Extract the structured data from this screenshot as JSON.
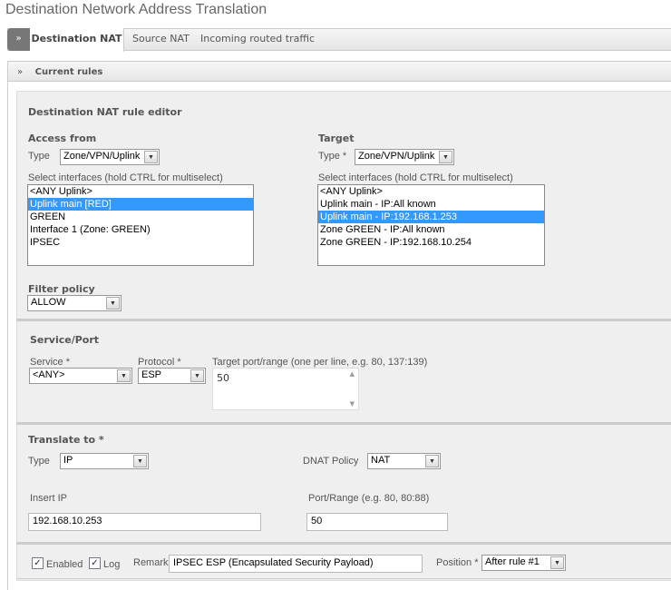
{
  "title": "Destination Network Address Translation",
  "tabs": [
    "Destination NAT",
    "Source NAT",
    "Incoming routed traffic"
  ],
  "current_rules": "Current rules",
  "editor_title": "Destination NAT rule editor",
  "access_from": {
    "heading": "Access from",
    "type_label": "Type",
    "type_value": "Zone/VPN/Uplink",
    "select_label": "Select interfaces (hold CTRL for multiselect)",
    "items": [
      "<ANY Uplink>",
      "Uplink main [RED]",
      "GREEN",
      "Interface 1 (Zone: GREEN)",
      "IPSEC"
    ],
    "selected": "Uplink main [RED]"
  },
  "target": {
    "heading": "Target",
    "type_label": "Type *",
    "type_value": "Zone/VPN/Uplink",
    "select_label": "Select interfaces (hold CTRL for multiselect)",
    "items": [
      "<ANY Uplink>",
      "Uplink main - IP:All known",
      "Uplink main - IP:192.168.1.253",
      "Zone GREEN - IP:All known",
      "Zone GREEN - IP:192.168.10.254"
    ],
    "selected": "Uplink main - IP:192.168.1.253"
  },
  "filter_policy": {
    "label": "Filter policy",
    "value": "ALLOW"
  },
  "service_port": {
    "heading": "Service/Port",
    "service_label": "Service *",
    "service_value": "<ANY>",
    "protocol_label": "Protocol *",
    "protocol_value": "ESP",
    "target_port_label": "Target port/range (one per line, e.g. 80, 137:139)",
    "target_port_value": "50"
  },
  "translate": {
    "heading": "Translate to *",
    "type_label": "Type",
    "type_value": "IP",
    "dnat_label": "DNAT Policy",
    "dnat_value": "NAT",
    "insert_ip_label": "Insert IP",
    "insert_ip_value": "192.168.10.253",
    "port_label": "Port/Range (e.g. 80, 80:88)",
    "port_value": "50"
  },
  "footer": {
    "enabled_label": "Enabled",
    "enabled": true,
    "log_label": "Log",
    "log": true,
    "remark_label": "Remark",
    "remark_value": "IPSEC ESP (Encapsulated Security Payload)",
    "position_label": "Position *",
    "position_value": "After rule #1"
  }
}
